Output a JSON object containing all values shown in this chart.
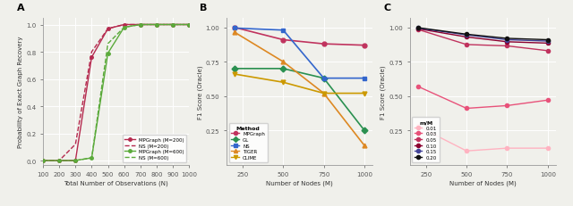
{
  "fig_bg": "#f0f0eb",
  "ax_bg": "#f0f0eb",
  "grid_color": "#ffffff",
  "spine_color": "#999999",
  "tick_color": "#555555",
  "panel_A": {
    "title": "A",
    "xlabel": "Total Number of Observations (N)",
    "ylabel": "Probability of Exact Graph Recovery",
    "xlim": [
      100,
      1000
    ],
    "ylim": [
      -0.03,
      1.05
    ],
    "xticks": [
      100,
      200,
      300,
      400,
      500,
      600,
      700,
      800,
      900,
      1000
    ],
    "yticks": [
      0.0,
      0.2,
      0.4,
      0.6,
      0.8,
      1.0
    ],
    "series": [
      {
        "label": "MPGraph (M=200)",
        "x": [
          100,
          200,
          300,
          400,
          500,
          600,
          700,
          800,
          900,
          1000
        ],
        "y": [
          0.0,
          0.0,
          0.0,
          0.76,
          0.97,
          1.0,
          1.0,
          1.0,
          1.0,
          1.0
        ],
        "color": "#b5294e",
        "linestyle": "solid",
        "marker": "o",
        "markersize": 2.5,
        "linewidth": 1.0,
        "zorder": 3
      },
      {
        "label": "NS (M=200)",
        "x": [
          100,
          200,
          300,
          400,
          500,
          600,
          700,
          800,
          900,
          1000
        ],
        "y": [
          0.0,
          0.0,
          0.12,
          0.8,
          0.97,
          1.0,
          1.0,
          1.0,
          1.0,
          1.0
        ],
        "color": "#b5294e",
        "linestyle": "dashed",
        "marker": null,
        "markersize": 2.5,
        "linewidth": 1.0,
        "zorder": 2
      },
      {
        "label": "MPGraph (M=600)",
        "x": [
          100,
          200,
          300,
          400,
          500,
          600,
          700,
          800,
          900,
          1000
        ],
        "y": [
          0.0,
          0.0,
          0.0,
          0.02,
          0.79,
          0.98,
          1.0,
          1.0,
          1.0,
          1.0
        ],
        "color": "#5aaa3a",
        "linestyle": "solid",
        "marker": "o",
        "markersize": 2.5,
        "linewidth": 1.0,
        "zorder": 3
      },
      {
        "label": "NS (M=600)",
        "x": [
          100,
          200,
          300,
          400,
          500,
          600,
          700,
          800,
          900,
          1000
        ],
        "y": [
          0.0,
          0.0,
          0.0,
          0.02,
          0.86,
          0.98,
          1.0,
          1.0,
          1.0,
          1.0
        ],
        "color": "#5aaa3a",
        "linestyle": "dashed",
        "marker": null,
        "markersize": 2.5,
        "linewidth": 1.0,
        "zorder": 2
      }
    ],
    "legend": [
      {
        "label": "MPGraph (M=200)",
        "color": "#b5294e",
        "linestyle": "solid",
        "marker": "o"
      },
      {
        "label": "NS (M=200)",
        "color": "#b5294e",
        "linestyle": "dashed",
        "marker": null
      },
      {
        "label": "MPGraph (M=600)",
        "color": "#5aaa3a",
        "linestyle": "solid",
        "marker": "o"
      },
      {
        "label": "NS (M=600)",
        "color": "#5aaa3a",
        "linestyle": "dashed",
        "marker": null
      }
    ]
  },
  "panel_B": {
    "title": "B",
    "xlabel": "Number of Nodes (M)",
    "ylabel": "F1 Score (Oracle)",
    "xlim": [
      150,
      1050
    ],
    "ylim": [
      0.0,
      1.07
    ],
    "xticks": [
      250,
      500,
      750,
      1000
    ],
    "yticks": [
      0.25,
      0.5,
      0.75,
      1.0
    ],
    "series": [
      {
        "label": "MPGraph",
        "x": [
          200,
          500,
          750,
          1000
        ],
        "y": [
          1.0,
          0.91,
          0.88,
          0.87
        ],
        "color": "#c0335e",
        "linestyle": "solid",
        "marker": "o",
        "markersize": 3.5,
        "linewidth": 1.2
      },
      {
        "label": "GL",
        "x": [
          200,
          500,
          750,
          1000
        ],
        "y": [
          0.7,
          0.7,
          0.63,
          0.25
        ],
        "color": "#2a9050",
        "linestyle": "solid",
        "marker": "D",
        "markersize": 3.5,
        "linewidth": 1.2
      },
      {
        "label": "NS",
        "x": [
          200,
          500,
          750,
          1000
        ],
        "y": [
          0.995,
          0.98,
          0.63,
          0.63
        ],
        "color": "#3366cc",
        "linestyle": "solid",
        "marker": "s",
        "markersize": 3.5,
        "linewidth": 1.2
      },
      {
        "label": "TIGER",
        "x": [
          200,
          500,
          750,
          1000
        ],
        "y": [
          0.965,
          0.75,
          0.52,
          0.14
        ],
        "color": "#dd8822",
        "linestyle": "solid",
        "marker": "^",
        "markersize": 3.5,
        "linewidth": 1.2
      },
      {
        "label": "CLIME",
        "x": [
          200,
          500,
          750,
          1000
        ],
        "y": [
          0.66,
          0.6,
          0.52,
          0.52
        ],
        "color": "#cc9900",
        "linestyle": "solid",
        "marker": "v",
        "markersize": 3.5,
        "linewidth": 1.2
      }
    ]
  },
  "panel_C": {
    "title": "C",
    "xlabel": "Number of Nodes (M)",
    "ylabel": "F1 Score (Oracle)",
    "xlim": [
      150,
      1050
    ],
    "ylim": [
      0.0,
      1.07
    ],
    "xticks": [
      250,
      500,
      750,
      1000
    ],
    "yticks": [
      0.25,
      0.5,
      0.75,
      1.0
    ],
    "series": [
      {
        "label": "0.01",
        "x": [
          200,
          500,
          750,
          1000
        ],
        "y": [
          0.28,
          0.1,
          0.12,
          0.12
        ],
        "color": "#ffb3c1",
        "linestyle": "solid",
        "marker": "o",
        "markersize": 3,
        "linewidth": 1.0
      },
      {
        "label": "0.03",
        "x": [
          200,
          500,
          750,
          1000
        ],
        "y": [
          0.57,
          0.41,
          0.43,
          0.47
        ],
        "color": "#e8527a",
        "linestyle": "solid",
        "marker": "o",
        "markersize": 3,
        "linewidth": 1.0
      },
      {
        "label": "0.05",
        "x": [
          200,
          500,
          750,
          1000
        ],
        "y": [
          0.985,
          0.875,
          0.865,
          0.83
        ],
        "color": "#c0335e",
        "linestyle": "solid",
        "marker": "o",
        "markersize": 3,
        "linewidth": 1.0
      },
      {
        "label": "0.10",
        "x": [
          200,
          500,
          750,
          1000
        ],
        "y": [
          0.99,
          0.93,
          0.895,
          0.885
        ],
        "color": "#8b0030",
        "linestyle": "solid",
        "marker": "o",
        "markersize": 3,
        "linewidth": 1.0
      },
      {
        "label": "0.15",
        "x": [
          200,
          500,
          750,
          1000
        ],
        "y": [
          0.995,
          0.945,
          0.91,
          0.9
        ],
        "color": "#444499",
        "linestyle": "solid",
        "marker": "o",
        "markersize": 3,
        "linewidth": 1.0
      },
      {
        "label": "0.20",
        "x": [
          200,
          500,
          750,
          1000
        ],
        "y": [
          0.998,
          0.95,
          0.92,
          0.91
        ],
        "color": "#111111",
        "linestyle": "solid",
        "marker": "o",
        "markersize": 3,
        "linewidth": 1.0
      }
    ]
  }
}
